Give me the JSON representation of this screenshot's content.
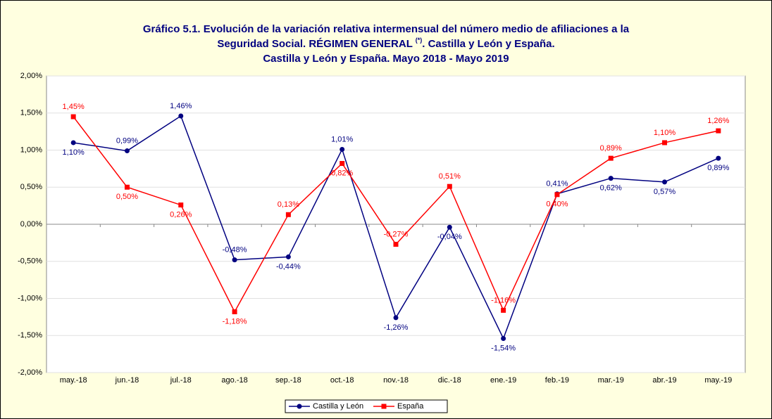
{
  "chart_data": {
    "type": "line",
    "title": [
      "Gráfico 5.1. Evolución de la variación relativa intermensual del número medio de afiliaciones a la",
      "Seguridad Social. RÉGIMEN GENERAL ",
      "(*)",
      ". Castilla y León y España.",
      "Castilla y León y España. Mayo 2018 - Mayo 2019"
    ],
    "categories": [
      "may.-18",
      "jun.-18",
      "jul.-18",
      "ago.-18",
      "sep.-18",
      "oct.-18",
      "nov.-18",
      "dic.-18",
      "ene.-19",
      "feb.-19",
      "mar.-19",
      "abr.-19",
      "may.-19"
    ],
    "series": [
      {
        "name": "Castilla y León",
        "color": "#000080",
        "values": [
          1.1,
          0.99,
          1.46,
          -0.48,
          -0.44,
          1.01,
          -1.26,
          -0.04,
          -1.54,
          0.41,
          0.62,
          0.57,
          0.89
        ],
        "value_labels": [
          "1,10%",
          "0,99%",
          "1,46%",
          "-0,48%",
          "-0,44%",
          "1,01%",
          "-1,26%",
          "-0,04%",
          "-1,54%",
          "0,41%",
          "0,62%",
          "0,57%",
          "0,89%"
        ]
      },
      {
        "name": "España",
        "color": "#ff0000",
        "values": [
          1.45,
          0.5,
          0.26,
          -1.18,
          0.13,
          0.82,
          -0.27,
          0.51,
          -1.16,
          0.4,
          0.89,
          1.1,
          1.26
        ],
        "value_labels": [
          "1,45%",
          "0,50%",
          "0,26%",
          "-1,18%",
          "0,13%",
          "0,82%",
          "-0,27%",
          "0,51%",
          "-1,16%",
          "0,40%",
          "0,89%",
          "1,10%",
          "1,26%"
        ]
      }
    ],
    "ylim": [
      -2,
      2
    ],
    "yticks": [
      {
        "value": -2,
        "label": "-2,00%"
      },
      {
        "value": -1.5,
        "label": "-1,50%"
      },
      {
        "value": -1,
        "label": "-1,00%"
      },
      {
        "value": -0.5,
        "label": "-0,50%"
      },
      {
        "value": 0,
        "label": "0,00%"
      },
      {
        "value": 0.5,
        "label": "0,50%"
      },
      {
        "value": 1,
        "label": "1,00%"
      },
      {
        "value": 1.5,
        "label": "1,50%"
      },
      {
        "value": 2,
        "label": "2,00%"
      }
    ],
    "grid": true,
    "legend": "bottom"
  }
}
